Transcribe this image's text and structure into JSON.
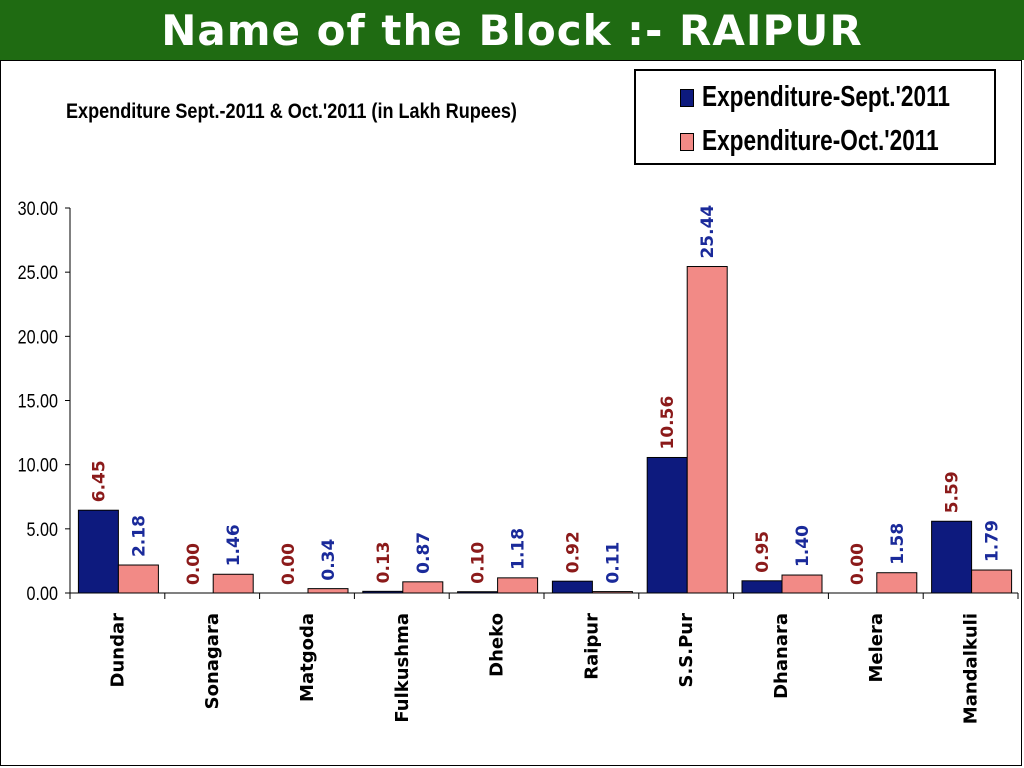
{
  "header": {
    "title": "Name of the Block :- RAIPUR"
  },
  "colors": {
    "banner_bg": "#1f6b12",
    "sept_fill": "#0d1a7e",
    "oct_fill": "#f28a86",
    "sept_label": "#8b1a1a",
    "oct_label": "#1a2a9a"
  },
  "chart_data": {
    "type": "bar",
    "title": "Expenditure Sept.-2011 & Oct.'2011 (in Lakh Rupees)",
    "categories": [
      "Dundar",
      "Sonagara",
      "Matgoda",
      "Fulkushma",
      "Dheko",
      "Raipur",
      "S.S.Pur",
      "Dhanara",
      "Melera",
      "Mandalkuli"
    ],
    "series": [
      {
        "name": "Expenditure-Sept.'2011",
        "values": [
          6.45,
          0.0,
          0.0,
          0.13,
          0.1,
          0.92,
          10.56,
          0.95,
          0.0,
          5.59
        ],
        "labels": [
          "6.45",
          "0.00",
          "0.00",
          "0.13",
          "0.10",
          "0.92",
          "10.56",
          "0.95",
          "0.00",
          "5.59"
        ]
      },
      {
        "name": "Expenditure-Oct.'2011",
        "values": [
          2.18,
          1.46,
          0.34,
          0.87,
          1.18,
          0.11,
          25.44,
          1.4,
          1.58,
          1.79
        ],
        "labels": [
          "2.18",
          "1.46",
          "0.34",
          "0.87",
          "1.18",
          "0.11",
          "25.44",
          "1.40",
          "1.58",
          "1.79"
        ]
      }
    ],
    "ylim": [
      0,
      30
    ],
    "yticks": [
      "0.00",
      "5.00",
      "10.00",
      "15.00",
      "20.00",
      "25.00",
      "30.00"
    ],
    "ytick_values": [
      0,
      5,
      10,
      15,
      20,
      25,
      30
    ],
    "legend_position": "top-right",
    "grid": false
  }
}
